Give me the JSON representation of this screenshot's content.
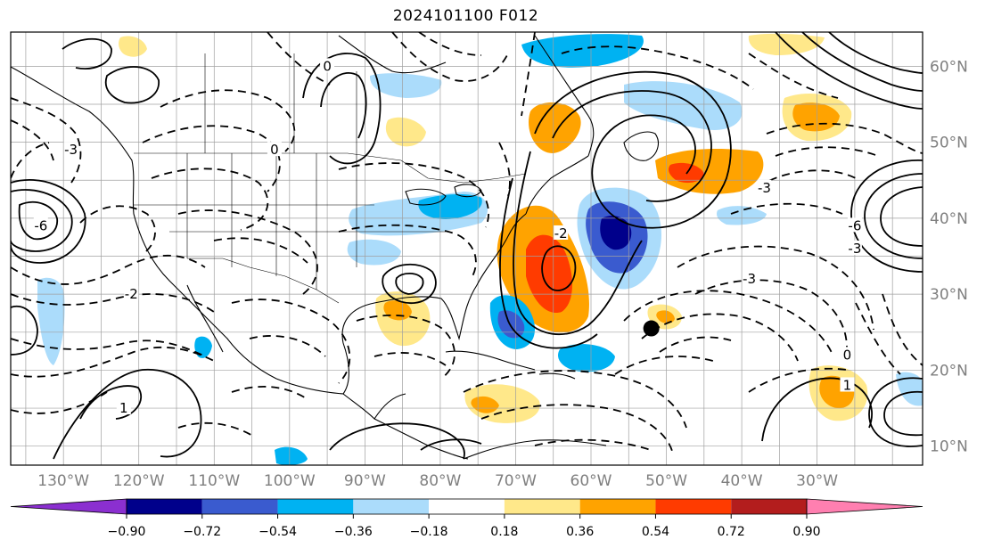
{
  "title": "2024101100 F012",
  "map": {
    "projection": "lat-lon",
    "extent": {
      "lon_min": -137,
      "lon_max": -16,
      "lat_min": 7.5,
      "lat_max": 64.5
    },
    "lon_ticks": [
      {
        "value": -130,
        "label": "130°W"
      },
      {
        "value": -120,
        "label": "120°W"
      },
      {
        "value": -110,
        "label": "110°W"
      },
      {
        "value": -100,
        "label": "100°W"
      },
      {
        "value": -90,
        "label": "90°W"
      },
      {
        "value": -80,
        "label": "80°W"
      },
      {
        "value": -70,
        "label": "70°W"
      },
      {
        "value": -60,
        "label": "60°W"
      },
      {
        "value": -50,
        "label": "50°W"
      },
      {
        "value": -40,
        "label": "40°W"
      },
      {
        "value": -30,
        "label": "30°W"
      }
    ],
    "lat_ticks": [
      {
        "value": 60,
        "label": "60°N"
      },
      {
        "value": 50,
        "label": "50°N"
      },
      {
        "value": 40,
        "label": "40°N"
      },
      {
        "value": 30,
        "label": "30°N"
      },
      {
        "value": 20,
        "label": "20°N"
      },
      {
        "value": 10,
        "label": "10°N"
      }
    ],
    "grid": true,
    "marker": {
      "name": "storm-center",
      "lon": -52,
      "lat": 25.5,
      "color": "#000000"
    }
  },
  "colorbar": {
    "colors": [
      "#8b2fd0",
      "#00008b",
      "#3a5bcf",
      "#00b2f2",
      "#abdcfb",
      "#ffffff",
      "#ffe88a",
      "#ffa300",
      "#ff3b00",
      "#b31d1d",
      "#ff7fb0"
    ],
    "ticks": [
      -0.9,
      -0.72,
      -0.54,
      -0.36,
      -0.18,
      0.18,
      0.36,
      0.54,
      0.72,
      0.9
    ],
    "tick_labels": [
      "−0.90",
      "−0.72",
      "−0.54",
      "−0.36",
      "−0.18",
      "0.18",
      "0.36",
      "0.54",
      "0.72",
      "0.90"
    ],
    "extend": "both"
  },
  "contour_labels": [
    {
      "text": "-6",
      "lon": -133,
      "lat": 39
    },
    {
      "text": "-2",
      "lon": -121,
      "lat": 30
    },
    {
      "text": "-3",
      "lon": -129,
      "lat": 49
    },
    {
      "text": "1",
      "lon": -122,
      "lat": 15
    },
    {
      "text": "-3",
      "lon": -39,
      "lat": 32
    },
    {
      "text": "-3",
      "lon": -37,
      "lat": 44
    },
    {
      "text": "-6",
      "lon": -25,
      "lat": 39
    },
    {
      "text": "-3",
      "lon": -25,
      "lat": 36
    },
    {
      "text": "0",
      "lon": -26,
      "lat": 22
    },
    {
      "text": "1",
      "lon": -26,
      "lat": 18
    },
    {
      "text": "-2",
      "lon": -64,
      "lat": 38
    },
    {
      "text": "0",
      "lon": -102,
      "lat": 49
    },
    {
      "text": "0",
      "lon": -95,
      "lat": 60
    }
  ]
}
